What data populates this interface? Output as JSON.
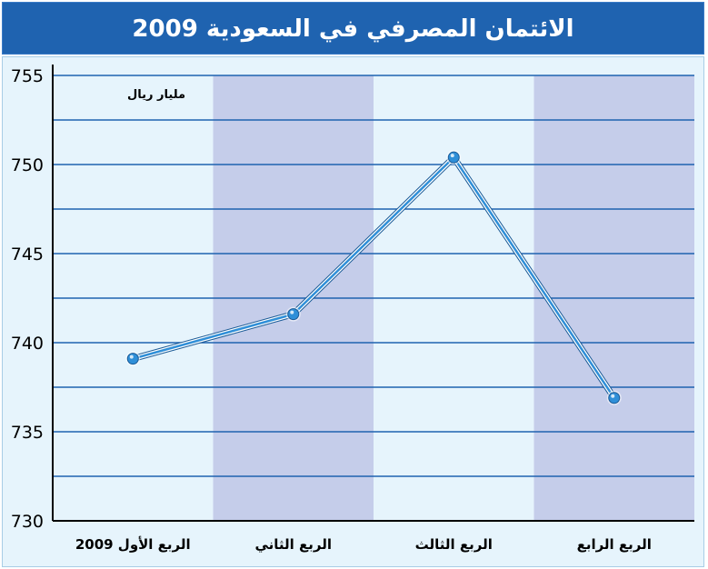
{
  "title": "الائتمان المصرفي في السعودية 2009",
  "chart_data": {
    "type": "line",
    "title": "الائتمان المصرفي في السعودية 2009",
    "unit_label": "مليار ريال",
    "categories": [
      "الربع الأول 2009",
      "الربع الثاني",
      "الربع الثالث",
      "الربع الرابع"
    ],
    "series": [
      {
        "name": "الائتمان المصرفي",
        "values": [
          739.1,
          741.6,
          750.4,
          736.9
        ]
      }
    ],
    "ylim": [
      730,
      755
    ],
    "yticks": [
      730,
      735,
      740,
      745,
      750,
      755
    ],
    "grid": true,
    "colors": {
      "background": "#e6f4fc",
      "band": "#c5cdea",
      "grid": "#1f63b0",
      "line": "#2f8fd8",
      "line_outline": "#ffffff",
      "axis": "#000000"
    }
  }
}
